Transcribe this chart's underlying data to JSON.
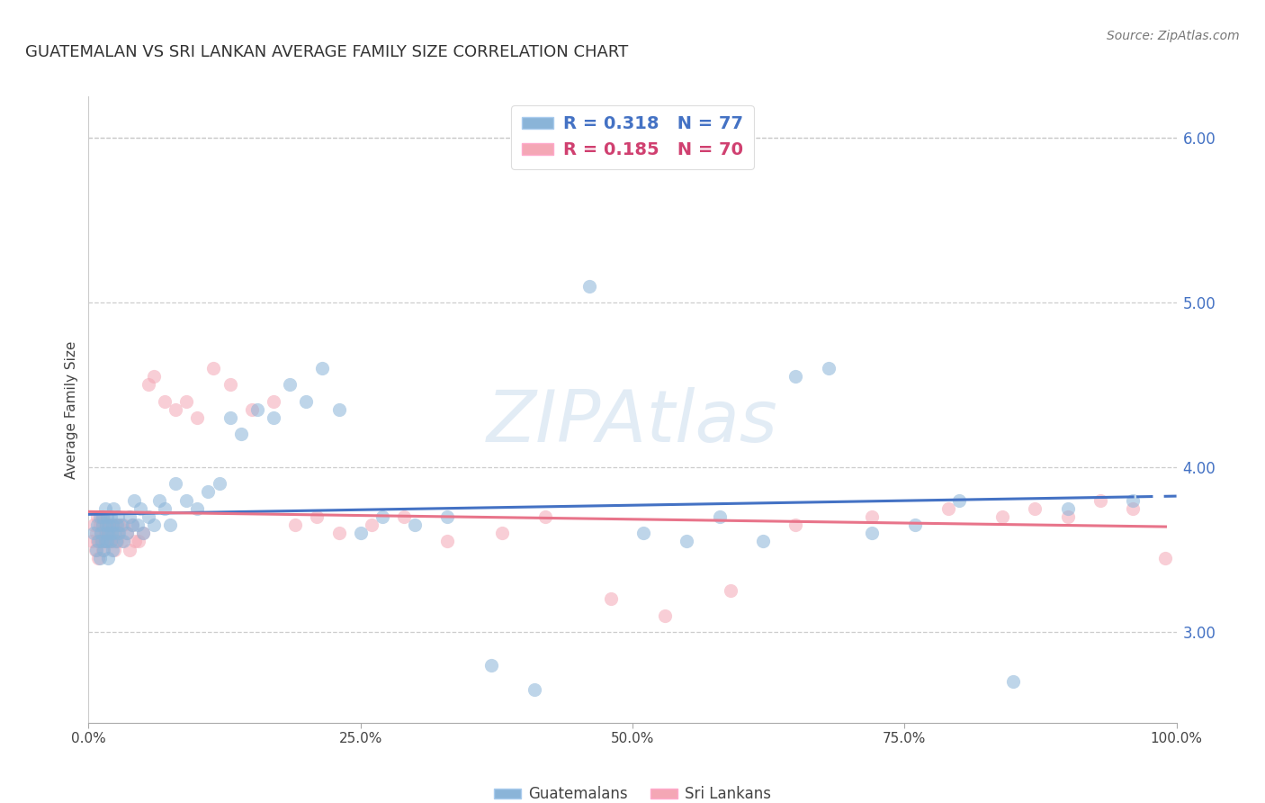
{
  "title": "GUATEMALAN VS SRI LANKAN AVERAGE FAMILY SIZE CORRELATION CHART",
  "source": "Source: ZipAtlas.com",
  "ylabel": "Average Family Size",
  "xlim": [
    0,
    1
  ],
  "ylim": [
    2.45,
    6.25
  ],
  "yticks": [
    3.0,
    4.0,
    5.0,
    6.0
  ],
  "xticks": [
    0.0,
    0.25,
    0.5,
    0.75,
    1.0
  ],
  "xtick_labels": [
    "0.0%",
    "25.0%",
    "50.0%",
    "75.0%",
    "100.0%"
  ],
  "blue_color": "#8ab4d8",
  "pink_color": "#f4a7b5",
  "trend_blue": "#4472c4",
  "trend_pink": "#e8748a",
  "R_blue": 0.318,
  "N_blue": 77,
  "R_pink": 0.185,
  "N_pink": 70,
  "legend_label_blue": "Guatemalans",
  "legend_label_pink": "Sri Lankans",
  "watermark": "ZIPAtlas",
  "grid_color": "#c8c8c8",
  "background_color": "#ffffff",
  "blue_x": [
    0.005,
    0.007,
    0.008,
    0.009,
    0.01,
    0.01,
    0.011,
    0.012,
    0.013,
    0.013,
    0.014,
    0.015,
    0.015,
    0.016,
    0.016,
    0.017,
    0.017,
    0.018,
    0.018,
    0.019,
    0.02,
    0.02,
    0.021,
    0.022,
    0.022,
    0.023,
    0.024,
    0.025,
    0.026,
    0.027,
    0.028,
    0.03,
    0.032,
    0.035,
    0.038,
    0.04,
    0.042,
    0.045,
    0.048,
    0.05,
    0.055,
    0.06,
    0.065,
    0.07,
    0.075,
    0.08,
    0.09,
    0.1,
    0.11,
    0.12,
    0.13,
    0.14,
    0.155,
    0.17,
    0.185,
    0.2,
    0.215,
    0.23,
    0.25,
    0.27,
    0.3,
    0.33,
    0.37,
    0.41,
    0.46,
    0.51,
    0.55,
    0.58,
    0.62,
    0.65,
    0.68,
    0.72,
    0.76,
    0.8,
    0.85,
    0.9,
    0.96
  ],
  "blue_y": [
    3.6,
    3.5,
    3.65,
    3.55,
    3.7,
    3.45,
    3.6,
    3.55,
    3.65,
    3.7,
    3.5,
    3.55,
    3.75,
    3.6,
    3.65,
    3.55,
    3.7,
    3.6,
    3.45,
    3.65,
    3.55,
    3.7,
    3.6,
    3.65,
    3.5,
    3.75,
    3.6,
    3.55,
    3.65,
    3.7,
    3.6,
    3.65,
    3.55,
    3.6,
    3.7,
    3.65,
    3.8,
    3.65,
    3.75,
    3.6,
    3.7,
    3.65,
    3.8,
    3.75,
    3.65,
    3.9,
    3.8,
    3.75,
    3.85,
    3.9,
    4.3,
    4.2,
    4.35,
    4.3,
    4.5,
    4.4,
    4.6,
    4.35,
    3.6,
    3.7,
    3.65,
    3.7,
    2.8,
    2.65,
    5.1,
    3.6,
    3.55,
    3.7,
    3.55,
    4.55,
    4.6,
    3.6,
    3.65,
    3.8,
    2.7,
    3.75,
    3.8
  ],
  "pink_x": [
    0.003,
    0.005,
    0.006,
    0.007,
    0.008,
    0.008,
    0.009,
    0.01,
    0.01,
    0.011,
    0.012,
    0.012,
    0.013,
    0.013,
    0.014,
    0.014,
    0.015,
    0.016,
    0.016,
    0.017,
    0.018,
    0.018,
    0.019,
    0.02,
    0.021,
    0.022,
    0.023,
    0.024,
    0.025,
    0.026,
    0.027,
    0.028,
    0.03,
    0.032,
    0.035,
    0.038,
    0.04,
    0.043,
    0.046,
    0.05,
    0.055,
    0.06,
    0.07,
    0.08,
    0.09,
    0.1,
    0.115,
    0.13,
    0.15,
    0.17,
    0.19,
    0.21,
    0.23,
    0.26,
    0.29,
    0.33,
    0.38,
    0.42,
    0.48,
    0.53,
    0.59,
    0.65,
    0.72,
    0.79,
    0.84,
    0.87,
    0.9,
    0.93,
    0.96,
    0.99
  ],
  "pink_y": [
    3.55,
    3.65,
    3.5,
    3.6,
    3.55,
    3.7,
    3.45,
    3.55,
    3.65,
    3.6,
    3.55,
    3.7,
    3.5,
    3.65,
    3.55,
    3.7,
    3.6,
    3.55,
    3.65,
    3.6,
    3.55,
    3.65,
    3.6,
    3.55,
    3.65,
    3.55,
    3.6,
    3.5,
    3.65,
    3.55,
    3.6,
    3.65,
    3.55,
    3.65,
    3.6,
    3.5,
    3.65,
    3.55,
    3.55,
    3.6,
    4.5,
    4.55,
    4.4,
    4.35,
    4.4,
    4.3,
    4.6,
    4.5,
    4.35,
    4.4,
    3.65,
    3.7,
    3.6,
    3.65,
    3.7,
    3.55,
    3.6,
    3.7,
    3.2,
    3.1,
    3.25,
    3.65,
    3.7,
    3.75,
    3.7,
    3.75,
    3.7,
    3.8,
    3.75,
    3.45
  ]
}
